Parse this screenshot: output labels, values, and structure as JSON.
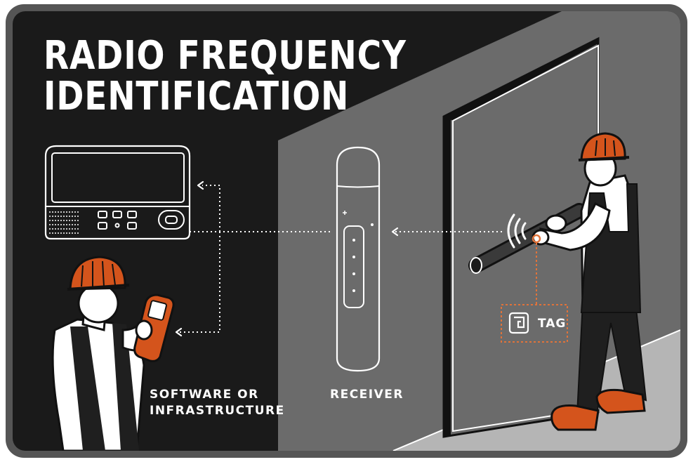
{
  "title": {
    "line1": "RADIO FREQUENCY",
    "line2": "IDENTIFICATION"
  },
  "labels": {
    "software_line1": "SOFTWARE OR",
    "software_line2": "INFRASTRUCTURE",
    "receiver": "RECEIVER",
    "tag": "TAG"
  },
  "colors": {
    "background_dark": "#1a1a1a",
    "wall_gray": "#6b6b6b",
    "floor_light": "#b5b5b5",
    "frame_gray": "#555555",
    "accent_orange": "#d4541c",
    "tag_orange": "#e0733a",
    "line_white": "#ffffff"
  },
  "icons": [
    "scanner-terminal-icon",
    "handheld-reader-icon",
    "receiver-device-icon",
    "rfid-tag-icon",
    "signal-waves-icon",
    "worker-figure-icon",
    "pipe-icon"
  ]
}
